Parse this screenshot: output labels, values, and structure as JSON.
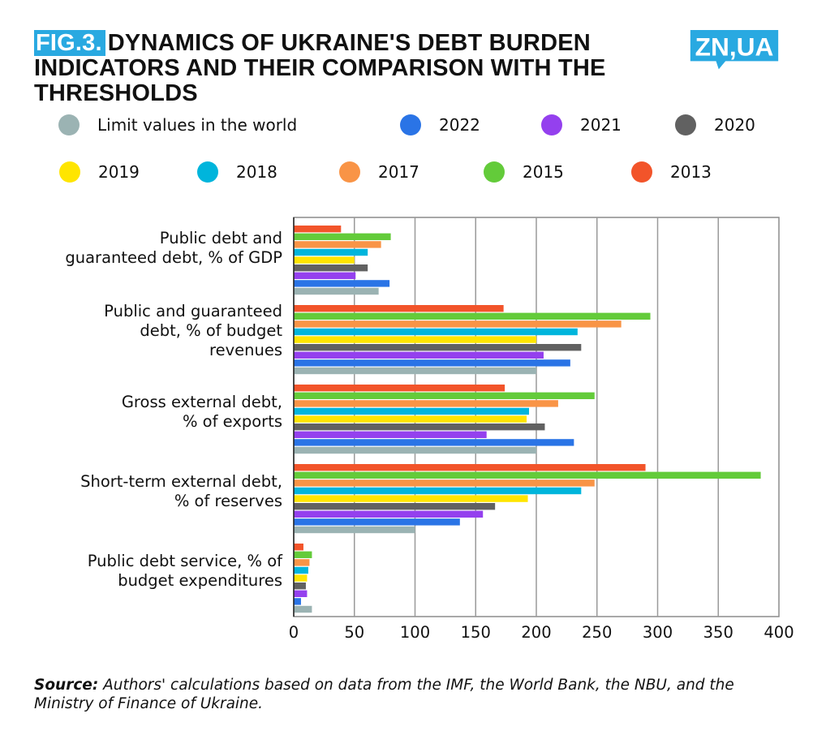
{
  "header": {
    "fig_label": "FIG.3.",
    "title": "DYNAMICS OF UKRAINE'S DEBT BURDEN INDICATORS AND THEIR COMPARISON WITH THE THRESHOLDS",
    "logo_text": "ZN,UA"
  },
  "colors": {
    "brand": "#29a9e1"
  },
  "legend": [
    {
      "label": "Limit values in the world",
      "color": "#9bb3b3"
    },
    {
      "label": "2022",
      "color": "#2a74e6"
    },
    {
      "label": "2021",
      "color": "#9440ee"
    },
    {
      "label": "2020",
      "color": "#616161"
    },
    {
      "label": "2019",
      "color": "#ffe500"
    },
    {
      "label": "2018",
      "color": "#00b5dc"
    },
    {
      "label": "2017",
      "color": "#f99446"
    },
    {
      "label": "2015",
      "color": "#63cb3a"
    },
    {
      "label": "2013",
      "color": "#f2542a"
    }
  ],
  "source": {
    "prefix": "Source:",
    "text": " Authors' calculations based on data from the IMF, the World Bank, the NBU, and the Ministry of Finance of Ukraine."
  },
  "chart_data": {
    "type": "bar",
    "orientation": "horizontal",
    "title": "FIG.3. DYNAMICS OF UKRAINE'S DEBT BURDEN INDICATORS AND THEIR COMPARISON WITH THE THRESHOLDS",
    "xlabel": "",
    "ylabel": "",
    "xlim": [
      0,
      400
    ],
    "x_ticks": [
      0,
      50,
      100,
      150,
      200,
      250,
      300,
      350,
      400
    ],
    "grid": "vertical",
    "legend_position": "top",
    "categories": [
      [
        "Public debt and",
        "guaranteed debt, % of GDP"
      ],
      [
        "Public and guaranteed",
        "debt, % of budget",
        "revenues"
      ],
      [
        "Gross external debt,",
        "% of exports"
      ],
      [
        "Short-term external debt,",
        "% of reserves"
      ],
      [
        "Public debt service, % of",
        "budget expenditures"
      ]
    ],
    "series": [
      {
        "name": "2013",
        "color": "#f2542a",
        "values": [
          39,
          173,
          174,
          290,
          8
        ]
      },
      {
        "name": "2015",
        "color": "#63cb3a",
        "values": [
          80,
          294,
          248,
          385,
          15
        ]
      },
      {
        "name": "2017",
        "color": "#f99446",
        "values": [
          72,
          270,
          218,
          248,
          13
        ]
      },
      {
        "name": "2018",
        "color": "#00b5dc",
        "values": [
          61,
          234,
          194,
          237,
          12
        ]
      },
      {
        "name": "2019",
        "color": "#ffe500",
        "values": [
          50,
          200,
          192,
          193,
          11
        ]
      },
      {
        "name": "2020",
        "color": "#616161",
        "values": [
          61,
          237,
          207,
          166,
          10
        ]
      },
      {
        "name": "2021",
        "color": "#9440ee",
        "values": [
          51,
          206,
          159,
          156,
          11
        ]
      },
      {
        "name": "2022",
        "color": "#2a74e6",
        "values": [
          79,
          228,
          231,
          137,
          6
        ]
      },
      {
        "name": "Limit values in the world",
        "color": "#9bb3b3",
        "values": [
          70,
          200,
          200,
          100,
          15
        ]
      }
    ]
  }
}
